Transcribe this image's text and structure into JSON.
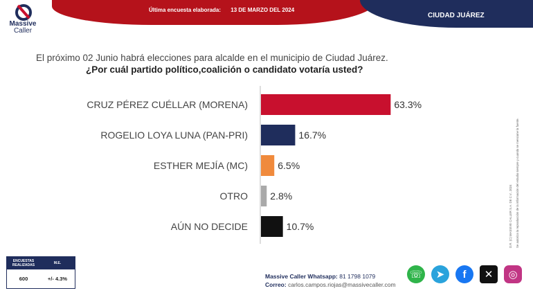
{
  "header": {
    "last_survey_label": "Última encuesta elaborada:",
    "last_survey_date": "13 DE MARZO DEL 2024",
    "city": "CIUDAD JUÁREZ",
    "brand_line1": "Massive",
    "brand_line2": "Caller"
  },
  "question": {
    "line1": "El próximo 02 Junio habrá elecciones para alcalde en el municipio de Ciudad Juárez.",
    "line2": "¿Por cuál partido político,coalición o candidato votaría usted?"
  },
  "chart_data": {
    "type": "bar",
    "orientation": "horizontal",
    "categories": [
      "CRUZ PÉREZ CUÉLLAR (MORENA)",
      "ROGELIO LOYA LUNA (PAN-PRI)",
      "ESTHER MEJÍA (MC)",
      "OTRO",
      "AÚN NO DECIDE"
    ],
    "values": [
      63.3,
      16.7,
      6.5,
      2.8,
      10.7
    ],
    "value_labels": [
      "63.3%",
      "16.7%",
      "6.5%",
      "2.8%",
      "10.7%"
    ],
    "colors": [
      "#c8102e",
      "#1f2d5c",
      "#f08a3c",
      "#a9a9a9",
      "#111111"
    ],
    "xlim": [
      0,
      100
    ],
    "grid": false
  },
  "side_note": {
    "line1": "D.R. (C) MASSIVE CALLER S.A. DE C.V., 2024",
    "line2": "Se autoriza la reproducción de la información del estudio siempre y cuando se mencione la fuente."
  },
  "stats": {
    "header_surveys": "ENCUESTAS REALIZADAS",
    "header_me": "M.E.",
    "surveys": "600",
    "margin": "+/- 4.3%"
  },
  "contact": {
    "whatsapp_label": "Massive Caller Whatsapp:",
    "whatsapp_number": "81 1798 1079",
    "email_label": "Correo:",
    "email": "carlos.campos.riojas@massivecaller.com"
  },
  "social": {
    "icons": [
      "whatsapp-icon",
      "telegram-icon",
      "facebook-icon",
      "x-icon",
      "instagram-icon"
    ]
  }
}
